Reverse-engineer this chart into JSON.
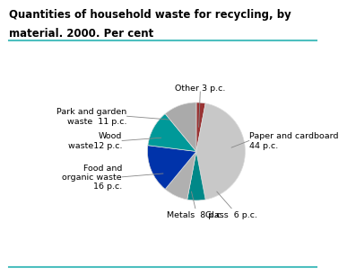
{
  "title_line1": "Quantities of household waste for recycling, by",
  "title_line2": "material. 2000. Per cent",
  "slices": [
    {
      "label": "Other 3 p.c.",
      "value": 3,
      "color": "#993333"
    },
    {
      "label": "Paper and cardboard\n44 p.c.",
      "value": 44,
      "color": "#c8c8c8"
    },
    {
      "label": "Glass  6 p.c.",
      "value": 6,
      "color": "#008888"
    },
    {
      "label": "Metals  8 p.c.",
      "value": 8,
      "color": "#b0b0b0"
    },
    {
      "label": "Food and\norganic waste\n16 p.c.",
      "value": 16,
      "color": "#0033aa"
    },
    {
      "label": "Wood\nwaste12 p.c.",
      "value": 12,
      "color": "#009999"
    },
    {
      "label": "Park and garden\nwaste  11 p.c.",
      "value": 11,
      "color": "#aaaaaa"
    }
  ],
  "background_color": "#ffffff",
  "title_color": "#000000",
  "title_fontsize": 8.5,
  "teal_line_color": "#4dbfbf",
  "figure_width": 3.57,
  "figure_height": 3.06,
  "label_fontsize": 6.8
}
